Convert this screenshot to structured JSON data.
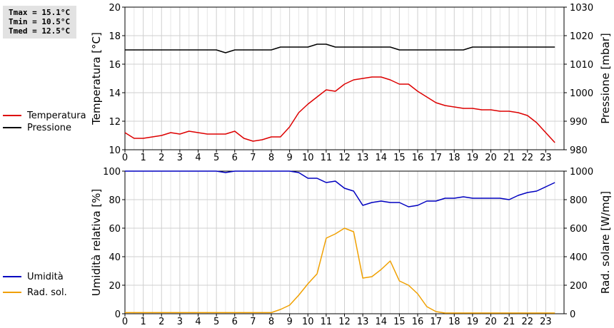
{
  "stats": [
    "Tmax = 15.1°C",
    "Tmin = 10.5°C",
    "Tmed = 12.5°C"
  ],
  "legend_top": [
    {
      "label": "Temperatura",
      "color": "#dd0000"
    },
    {
      "label": "Pressione",
      "color": "#000000"
    }
  ],
  "legend_bottom": [
    {
      "label": "Umidità",
      "color": "#0000c0"
    },
    {
      "label": "Rad. sol.",
      "color": "#f0a000"
    }
  ],
  "chart_data": [
    {
      "type": "line",
      "ylabel": "Temperatura [°C]",
      "y2label": "Pressione [mbar]",
      "xlim": [
        0,
        24
      ],
      "ylim": [
        10,
        20
      ],
      "y2lim": [
        980,
        1030
      ],
      "x_ticks": [
        0,
        1,
        2,
        3,
        4,
        5,
        6,
        7,
        8,
        9,
        10,
        11,
        12,
        13,
        14,
        15,
        16,
        17,
        18,
        19,
        20,
        21,
        22,
        23
      ],
      "y_ticks": [
        10,
        12,
        14,
        16,
        18,
        20
      ],
      "y2_ticks": [
        980,
        990,
        1000,
        1010,
        1020,
        1030
      ],
      "grid": true,
      "series": [
        {
          "name": "Temperatura",
          "axis": "left",
          "color": "#dd0000",
          "x": [
            0,
            0.5,
            1,
            1.5,
            2,
            2.5,
            3,
            3.5,
            4,
            4.5,
            5,
            5.5,
            6,
            6.5,
            7,
            7.5,
            8,
            8.5,
            9,
            9.5,
            10,
            10.5,
            11,
            11.5,
            12,
            12.5,
            13,
            13.5,
            14,
            14.5,
            15,
            15.5,
            16,
            16.5,
            17,
            17.5,
            18,
            18.5,
            19,
            19.5,
            20,
            20.5,
            21,
            21.5,
            22,
            22.5,
            23,
            23.5
          ],
          "y": [
            11.2,
            10.8,
            10.8,
            10.9,
            11.0,
            11.2,
            11.1,
            11.3,
            11.2,
            11.1,
            11.1,
            11.1,
            11.3,
            10.8,
            10.6,
            10.7,
            10.9,
            10.9,
            11.6,
            12.6,
            13.2,
            13.7,
            14.2,
            14.1,
            14.6,
            14.9,
            15.0,
            15.1,
            15.1,
            14.9,
            14.6,
            14.6,
            14.1,
            13.7,
            13.3,
            13.1,
            13.0,
            12.9,
            12.9,
            12.8,
            12.8,
            12.7,
            12.7,
            12.6,
            12.4,
            11.9,
            11.2,
            10.5
          ]
        },
        {
          "name": "Pressione",
          "axis": "right",
          "color": "#000000",
          "x": [
            0,
            0.5,
            1,
            1.5,
            2,
            2.5,
            3,
            3.5,
            4,
            4.5,
            5,
            5.5,
            6,
            6.5,
            7,
            7.5,
            8,
            8.5,
            9,
            9.5,
            10,
            10.5,
            11,
            11.5,
            12,
            12.5,
            13,
            13.5,
            14,
            14.5,
            15,
            15.5,
            16,
            16.5,
            17,
            17.5,
            18,
            18.5,
            19,
            19.5,
            20,
            20.5,
            21,
            21.5,
            22,
            22.5,
            23,
            23.5
          ],
          "y": [
            1015,
            1015,
            1015,
            1015,
            1015,
            1015,
            1015,
            1015,
            1015,
            1015,
            1015,
            1014,
            1015,
            1015,
            1015,
            1015,
            1015,
            1016,
            1016,
            1016,
            1016,
            1017,
            1017,
            1016,
            1016,
            1016,
            1016,
            1016,
            1016,
            1016,
            1015,
            1015,
            1015,
            1015,
            1015,
            1015,
            1015,
            1015,
            1016,
            1016,
            1016,
            1016,
            1016,
            1016,
            1016,
            1016,
            1016,
            1016
          ]
        }
      ]
    },
    {
      "type": "line",
      "ylabel": "Umidità relativa [%]",
      "y2label": "Rad. solare [W/mq]",
      "xlim": [
        0,
        24
      ],
      "ylim": [
        0,
        100
      ],
      "y2lim": [
        0,
        1000
      ],
      "x_ticks": [
        0,
        1,
        2,
        3,
        4,
        5,
        6,
        7,
        8,
        9,
        10,
        11,
        12,
        13,
        14,
        15,
        16,
        17,
        18,
        19,
        20,
        21,
        22,
        23
      ],
      "y_ticks": [
        0,
        20,
        40,
        60,
        80,
        100
      ],
      "y2_ticks": [
        0,
        200,
        400,
        600,
        800,
        1000
      ],
      "grid": true,
      "series": [
        {
          "name": "Umidità",
          "axis": "left",
          "color": "#0000c0",
          "x": [
            0,
            0.5,
            1,
            1.5,
            2,
            2.5,
            3,
            3.5,
            4,
            4.5,
            5,
            5.5,
            6,
            6.5,
            7,
            7.5,
            8,
            8.5,
            9,
            9.5,
            10,
            10.5,
            11,
            11.5,
            12,
            12.5,
            13,
            13.5,
            14,
            14.5,
            15,
            15.5,
            16,
            16.5,
            17,
            17.5,
            18,
            18.5,
            19,
            19.5,
            20,
            20.5,
            21,
            21.5,
            22,
            22.5,
            23,
            23.5
          ],
          "y": [
            100,
            100,
            100,
            100,
            100,
            100,
            100,
            100,
            100,
            100,
            100,
            99,
            100,
            100,
            100,
            100,
            100,
            100,
            100,
            99,
            95,
            95,
            92,
            93,
            88,
            86,
            76,
            78,
            79,
            78,
            78,
            75,
            76,
            79,
            79,
            81,
            81,
            82,
            81,
            81,
            81,
            81,
            80,
            83,
            85,
            86,
            89,
            92
          ]
        },
        {
          "name": "Rad. sol.",
          "axis": "right",
          "color": "#f0a000",
          "x": [
            0,
            0.5,
            1,
            1.5,
            2,
            2.5,
            3,
            3.5,
            4,
            4.5,
            5,
            5.5,
            6,
            6.5,
            7,
            7.5,
            8,
            8.5,
            9,
            9.5,
            10,
            10.5,
            11,
            11.5,
            12,
            12.5,
            13,
            13.5,
            14,
            14.5,
            15,
            15.5,
            16,
            16.5,
            17,
            17.5,
            18,
            18.5,
            19,
            19.5,
            20,
            20.5,
            21,
            21.5,
            22,
            22.5,
            23,
            23.5
          ],
          "y": [
            8,
            8,
            8,
            8,
            8,
            8,
            8,
            8,
            8,
            8,
            8,
            8,
            8,
            8,
            8,
            8,
            8,
            30,
            60,
            130,
            210,
            280,
            530,
            560,
            600,
            575,
            250,
            260,
            310,
            370,
            230,
            200,
            140,
            50,
            15,
            5,
            5,
            5,
            5,
            5,
            5,
            5,
            5,
            5,
            5,
            5,
            5,
            5
          ]
        }
      ]
    }
  ]
}
